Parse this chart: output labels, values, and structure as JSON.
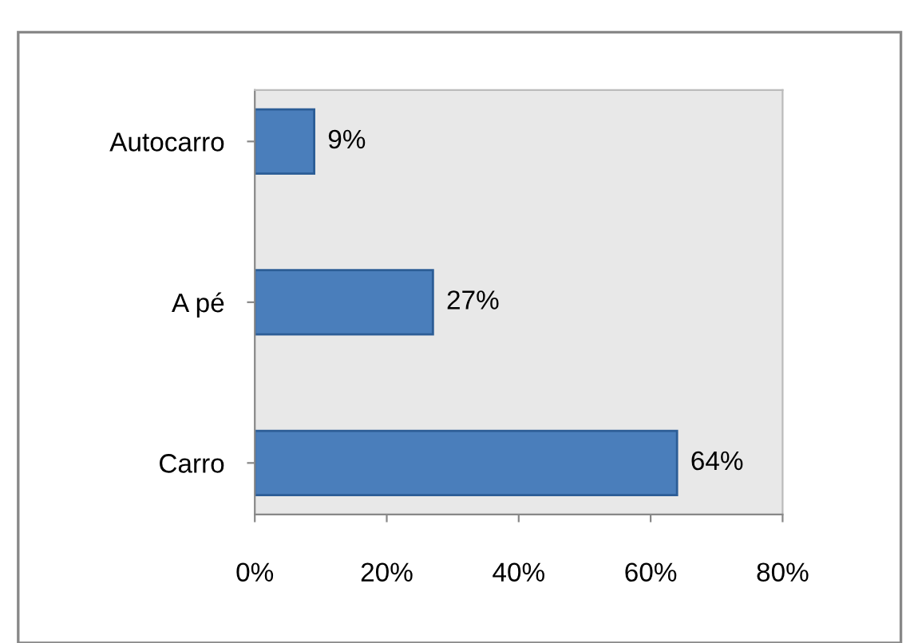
{
  "chart_data": {
    "type": "bar",
    "orientation": "horizontal",
    "categories": [
      "Autocarro",
      "A pé",
      "Carro"
    ],
    "values": [
      9,
      27,
      64
    ],
    "value_labels": [
      "9%",
      "27%",
      "64%"
    ],
    "color": "#4a7ebb",
    "xlim": [
      0,
      80
    ],
    "xticks": [
      {
        "value": 0,
        "label": "0%"
      },
      {
        "value": 20,
        "label": "20%"
      },
      {
        "value": 40,
        "label": "40%"
      },
      {
        "value": 60,
        "label": "60%"
      },
      {
        "value": 80,
        "label": "80%"
      }
    ],
    "grid": false
  }
}
